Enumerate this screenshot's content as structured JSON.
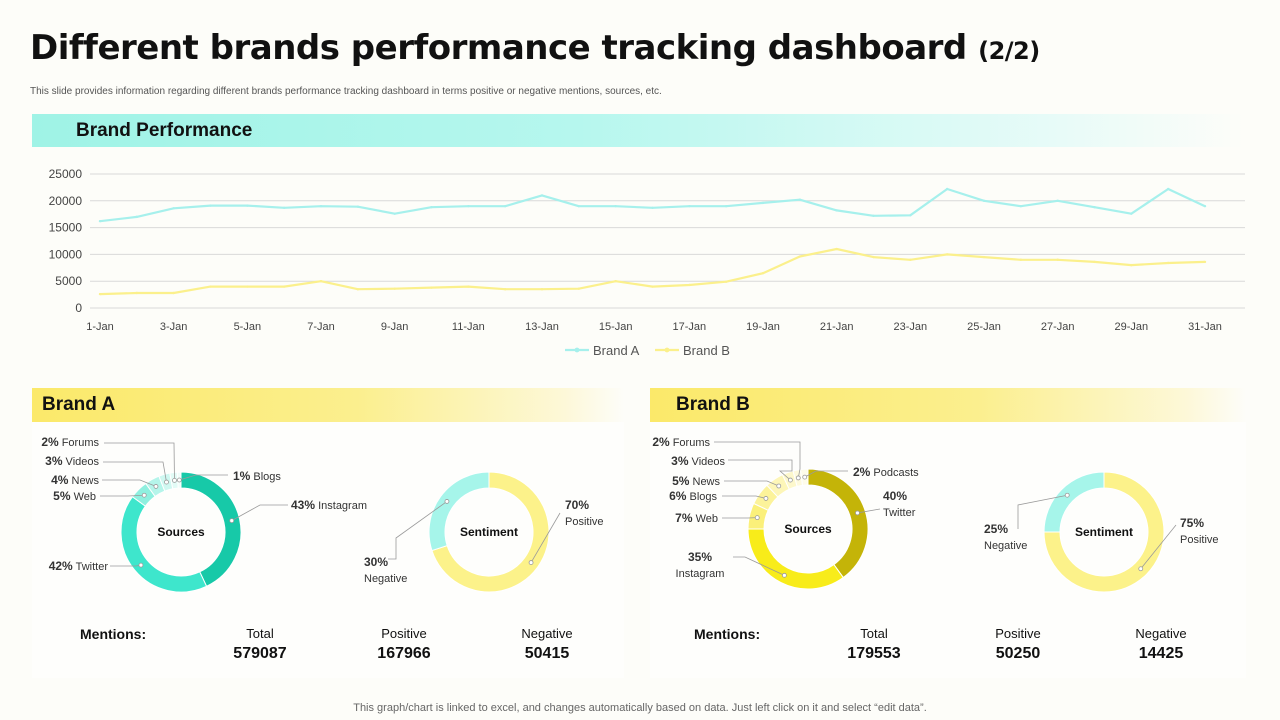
{
  "header": {
    "title": "Different brands performance tracking dashboard",
    "title_part": "(2/2)",
    "subtitle": "This slide provides information regarding different brands performance tracking dashboard in terms positive or negative mentions, sources, etc."
  },
  "sections": {
    "performance": "Brand Performance",
    "brand_a": "Brand A",
    "brand_b": "Brand B"
  },
  "colors": {
    "brand_a_line": "#a6f0ec",
    "brand_b_line": "#fbf08c",
    "teal_dark": "#17c9a8",
    "teal_mid": "#3ee6cc",
    "teal_light": "#a6f5ea",
    "yellow": "#fcf17a",
    "olive": "#c4b408"
  },
  "chart_data": [
    {
      "type": "line",
      "title": "",
      "x": [
        "1-Jan",
        "2-Jan",
        "3-Jan",
        "4-Jan",
        "5-Jan",
        "6-Jan",
        "7-Jan",
        "8-Jan",
        "9-Jan",
        "10-Jan",
        "11-Jan",
        "12-Jan",
        "13-Jan",
        "14-Jan",
        "15-Jan",
        "16-Jan",
        "17-Jan",
        "18-Jan",
        "19-Jan",
        "20-Jan",
        "21-Jan",
        "22-Jan",
        "23-Jan",
        "24-Jan",
        "25-Jan",
        "26-Jan",
        "27-Jan",
        "28-Jan",
        "29-Jan",
        "30-Jan",
        "31-Jan"
      ],
      "xtick_labels": [
        "1-Jan",
        "3-Jan",
        "5-Jan",
        "7-Jan",
        "9-Jan",
        "11-Jan",
        "13-Jan",
        "15-Jan",
        "17-Jan",
        "19-Jan",
        "21-Jan",
        "23-Jan",
        "25-Jan",
        "27-Jan",
        "29-Jan",
        "31-Jan"
      ],
      "ylim": [
        0,
        25000
      ],
      "yticks": [
        0,
        5000,
        10000,
        15000,
        20000,
        25000
      ],
      "grid": true,
      "legend": "bottom",
      "series": [
        {
          "name": "Brand A",
          "color": "#a6f0ec",
          "values": [
            16200,
            17000,
            18600,
            19100,
            19100,
            18700,
            19000,
            18900,
            17600,
            18800,
            19000,
            19000,
            21000,
            19000,
            19000,
            18700,
            19000,
            19000,
            19600,
            20200,
            18200,
            17200,
            17300,
            22200,
            20000,
            19000,
            20000,
            18800,
            17600,
            22200,
            19000
          ]
        },
        {
          "name": "Brand B",
          "color": "#fbf08c",
          "values": [
            2600,
            2800,
            2800,
            4000,
            4000,
            4000,
            5000,
            3500,
            3600,
            3800,
            4000,
            3500,
            3500,
            3600,
            5000,
            4000,
            4300,
            4900,
            6500,
            9600,
            11000,
            9500,
            9000,
            10000,
            9500,
            9000,
            9000,
            8600,
            8000,
            8400,
            8600
          ]
        }
      ]
    },
    {
      "type": "pie",
      "variant": "donut",
      "center_label": "Sources",
      "slices": [
        {
          "label": "Instagram",
          "value": 43,
          "text": "43%",
          "color": "#17c9a8"
        },
        {
          "label": "Twitter",
          "value": 42,
          "text": "42%",
          "color": "#3ee6cc"
        },
        {
          "label": "Web",
          "value": 5,
          "text": "5%",
          "color": "#8ff0df"
        },
        {
          "label": "News",
          "value": 4,
          "text": "4%",
          "color": "#b5f5ea"
        },
        {
          "label": "Videos",
          "value": 3,
          "text": "3%",
          "color": "#cff8f1"
        },
        {
          "label": "Forums",
          "value": 2,
          "text": "2%",
          "color": "#e2fbf6"
        },
        {
          "label": "Blogs",
          "value": 1,
          "text": "1%",
          "color": "#f0fdfa"
        }
      ]
    },
    {
      "type": "pie",
      "variant": "donut",
      "center_label": "Sentiment",
      "slices": [
        {
          "label": "Positive",
          "value": 70,
          "text": "70%",
          "color": "#fcf28a"
        },
        {
          "label": "Negative",
          "value": 30,
          "text": "30%",
          "color": "#a6f5ea"
        }
      ]
    },
    {
      "type": "pie",
      "variant": "donut",
      "center_label": "Sources",
      "slices": [
        {
          "label": "Twitter",
          "value": 40,
          "text": "40%",
          "color": "#c4b408"
        },
        {
          "label": "Instagram",
          "value": 35,
          "text": "35%",
          "color": "#f8ec1a"
        },
        {
          "label": "Web",
          "value": 7,
          "text": "7%",
          "color": "#fbf07a"
        },
        {
          "label": "Blogs",
          "value": 6,
          "text": "6%",
          "color": "#fcf39a"
        },
        {
          "label": "News",
          "value": 5,
          "text": "5%",
          "color": "#fdf6b8"
        },
        {
          "label": "Videos",
          "value": 3,
          "text": "3%",
          "color": "#fdf8cc"
        },
        {
          "label": "Forums",
          "value": 2,
          "text": "2%",
          "color": "#fefadd"
        },
        {
          "label": "Podcasts",
          "value": 2,
          "text": "2%",
          "color": "#fefce9"
        }
      ]
    },
    {
      "type": "pie",
      "variant": "donut",
      "center_label": "Sentiment",
      "slices": [
        {
          "label": "Positive",
          "value": 75,
          "text": "75%",
          "color": "#fcf28a"
        },
        {
          "label": "Negative",
          "value": 25,
          "text": "25%",
          "color": "#a6f5ea"
        }
      ]
    }
  ],
  "mentions": {
    "label": "Mentions:",
    "total_label": "Total",
    "positive_label": "Positive",
    "negative_label": "Negative",
    "brand_a": {
      "total": "579087",
      "positive": "167966",
      "negative": "50415"
    },
    "brand_b": {
      "total": "179553",
      "positive": "50250",
      "negative": "14425"
    }
  },
  "footer": "This graph/chart is linked to excel, and changes automatically based on data. Just left click on it and select “edit data”."
}
